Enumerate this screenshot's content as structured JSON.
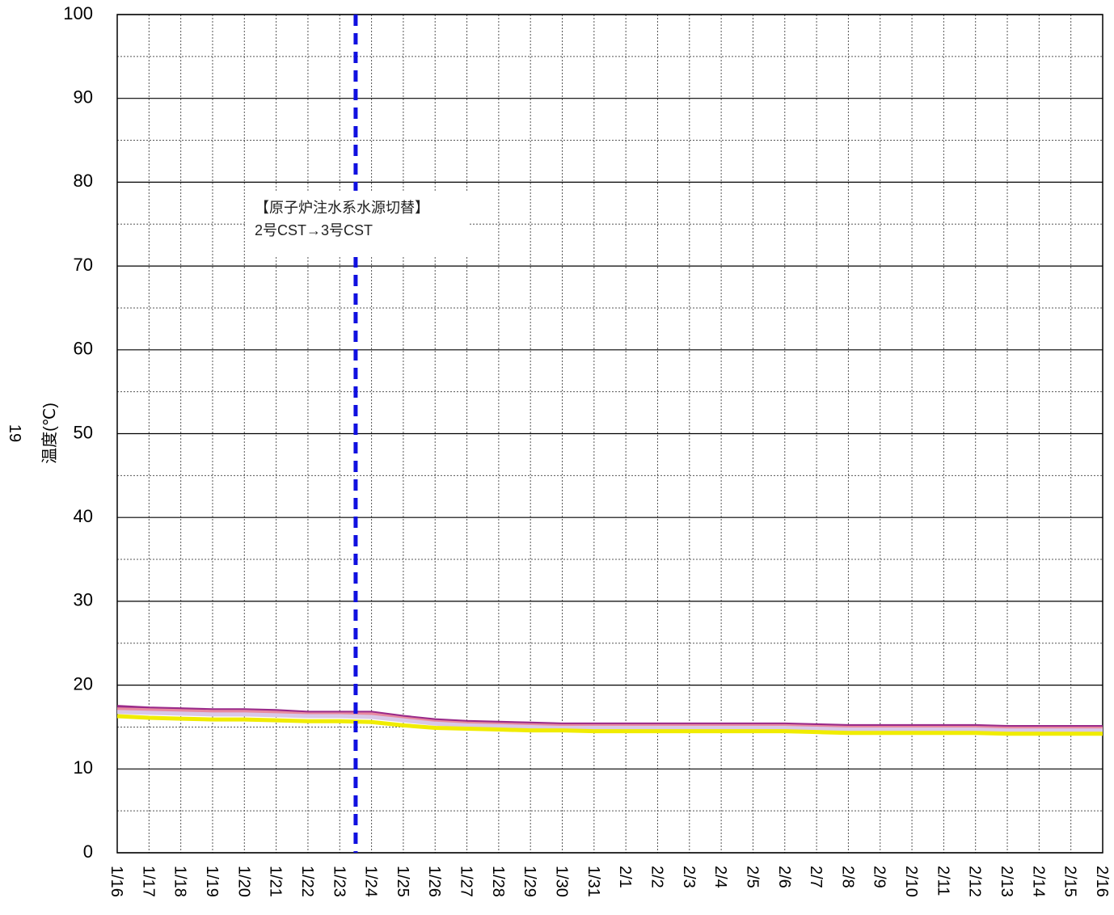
{
  "chart_data": {
    "type": "line",
    "ylabel": "温度(℃)",
    "ylabel_top": "19",
    "ylim": [
      0,
      100
    ],
    "y_ticks": [
      0,
      10,
      20,
      30,
      40,
      50,
      60,
      70,
      80,
      90,
      100
    ],
    "minor_grid": true,
    "categories": [
      "1/16",
      "1/17",
      "1/18",
      "1/19",
      "1/20",
      "1/21",
      "1/22",
      "1/23",
      "1/24",
      "1/25",
      "1/26",
      "1/27",
      "1/28",
      "1/29",
      "1/30",
      "1/31",
      "2/1",
      "2/2",
      "2/3",
      "2/4",
      "2/5",
      "2/6",
      "2/7",
      "2/8",
      "2/9",
      "2/10",
      "2/11",
      "2/12",
      "2/13",
      "2/14",
      "2/15",
      "2/16"
    ],
    "event_line": {
      "x": 7.5,
      "color": "#1010e0",
      "style": "dashed"
    },
    "annotation": {
      "line1": "【原子炉注水系水源切替】",
      "line2": "2号CST→3号CST"
    },
    "series": [
      {
        "color": "#9a2a8a",
        "values": [
          17.4,
          17.2,
          17.1,
          17.0,
          17.0,
          16.9,
          16.7,
          16.7,
          16.7,
          16.2,
          15.8,
          15.6,
          15.5,
          15.4,
          15.3,
          15.3,
          15.3,
          15.3,
          15.3,
          15.3,
          15.3,
          15.3,
          15.2,
          15.1,
          15.1,
          15.1,
          15.1,
          15.1,
          15.0,
          15.0,
          15.0,
          15.0
        ]
      },
      {
        "color": "#e88aa0",
        "values": [
          17.1,
          17.0,
          16.9,
          16.8,
          16.8,
          16.7,
          16.5,
          16.5,
          16.5,
          16.0,
          15.6,
          15.4,
          15.3,
          15.2,
          15.1,
          15.1,
          15.1,
          15.1,
          15.1,
          15.1,
          15.1,
          15.1,
          15.0,
          14.9,
          14.9,
          14.9,
          14.9,
          14.9,
          14.8,
          14.8,
          14.8,
          14.8
        ]
      },
      {
        "color": "#d8c8e8",
        "values": [
          16.8,
          16.7,
          16.6,
          16.5,
          16.5,
          16.4,
          16.3,
          16.3,
          16.2,
          15.8,
          15.4,
          15.2,
          15.1,
          15.0,
          14.9,
          14.9,
          14.9,
          14.9,
          14.9,
          14.9,
          14.9,
          14.9,
          14.8,
          14.7,
          14.7,
          14.7,
          14.7,
          14.7,
          14.6,
          14.6,
          14.6,
          14.6
        ]
      },
      {
        "color": "#f0ec00",
        "values": [
          16.3,
          16.1,
          16.0,
          15.9,
          15.9,
          15.8,
          15.7,
          15.7,
          15.6,
          15.2,
          14.9,
          14.8,
          14.7,
          14.6,
          14.6,
          14.5,
          14.5,
          14.5,
          14.5,
          14.5,
          14.5,
          14.5,
          14.4,
          14.3,
          14.3,
          14.3,
          14.3,
          14.3,
          14.2,
          14.2,
          14.2,
          14.2
        ]
      }
    ]
  }
}
